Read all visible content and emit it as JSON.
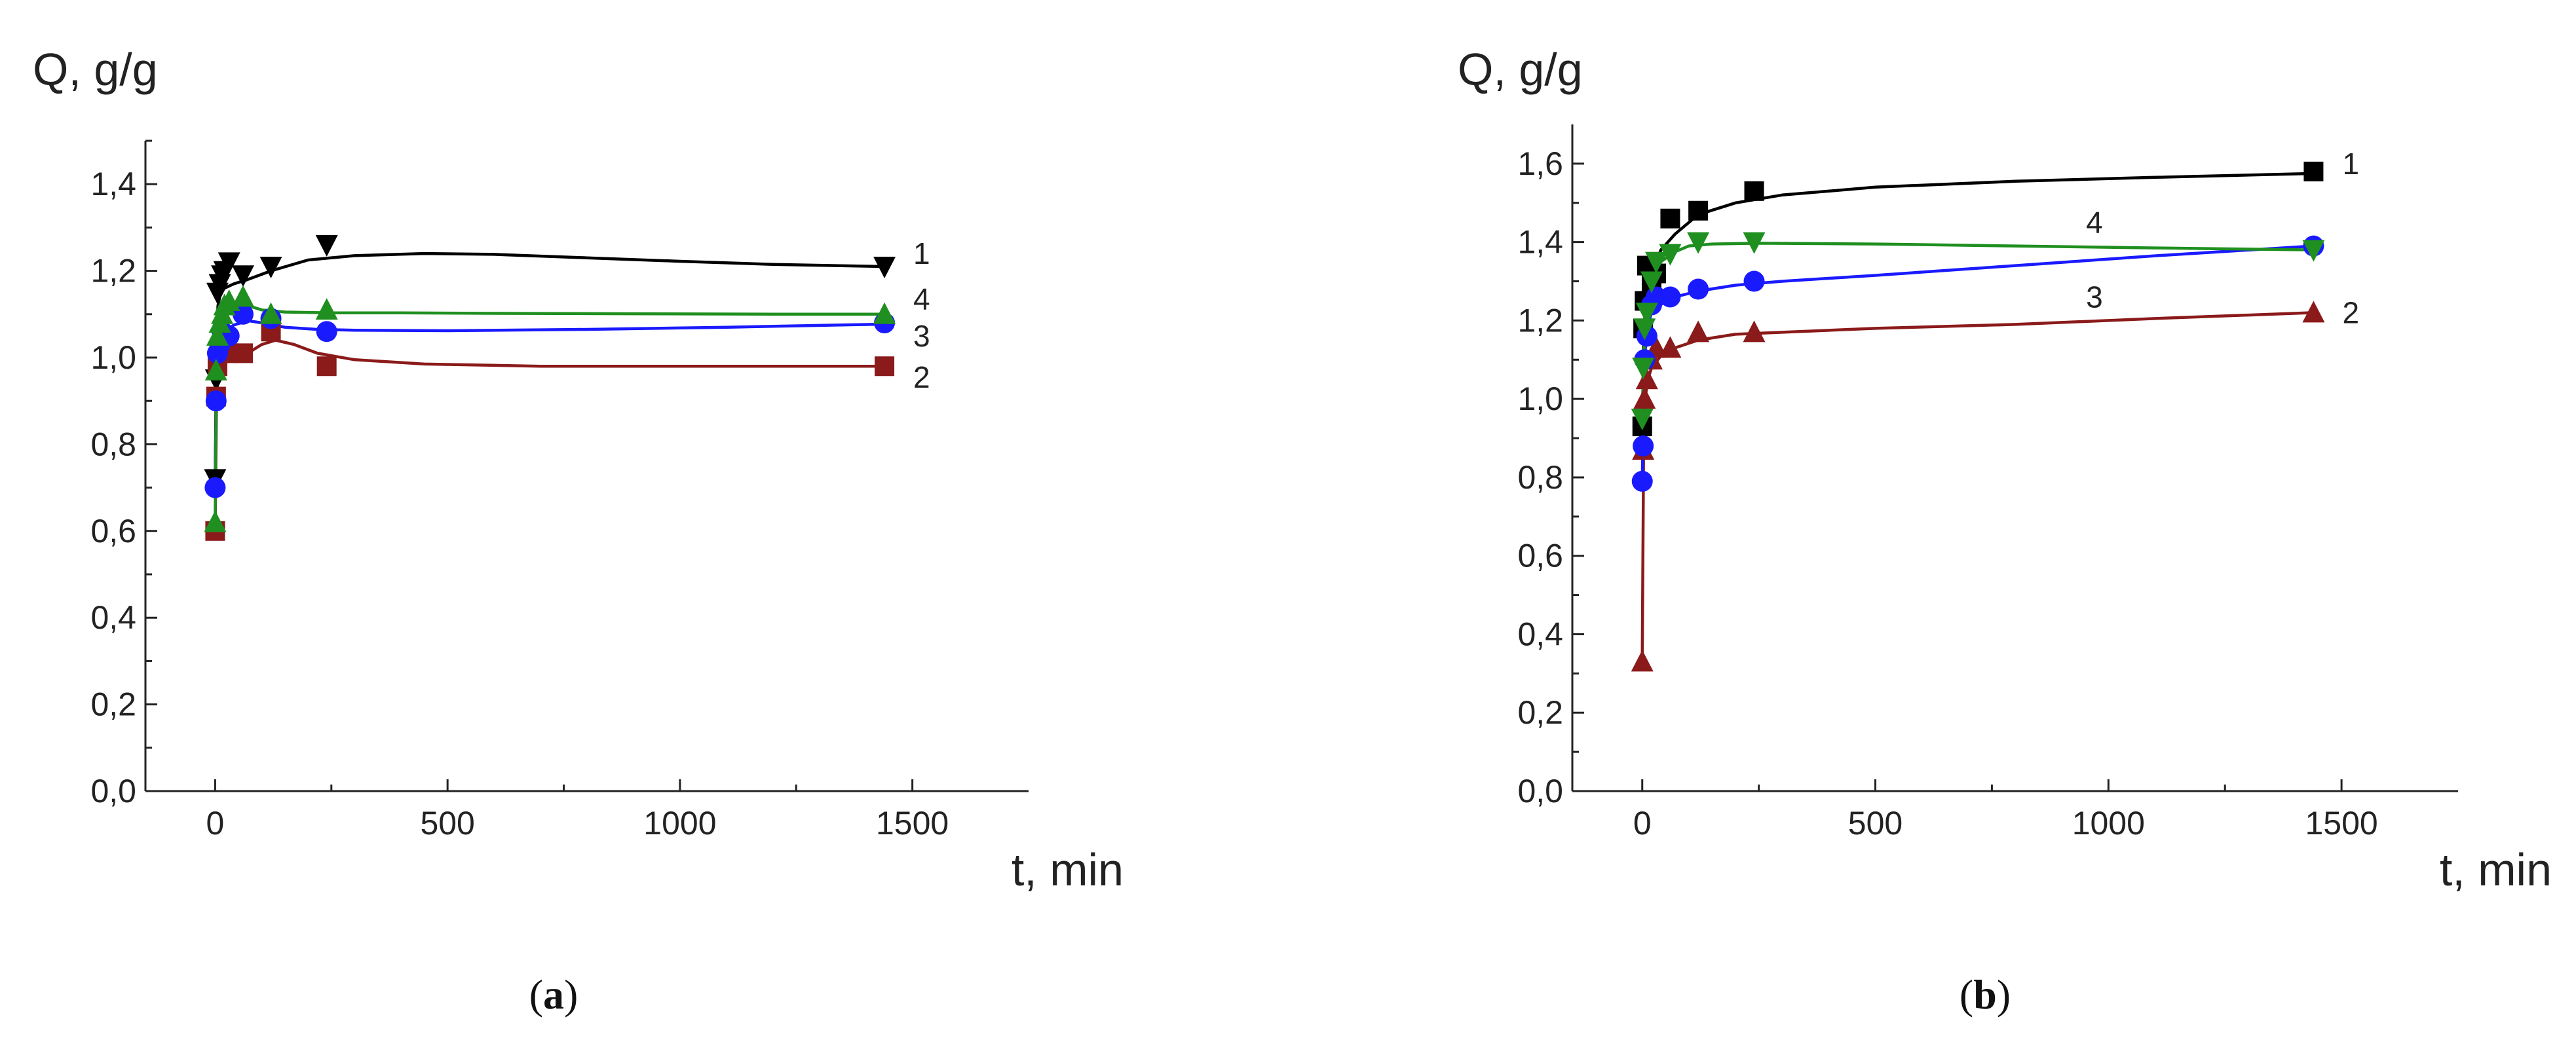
{
  "figure": {
    "panel_labels": [
      "a",
      "b"
    ]
  },
  "chart_data": [
    {
      "type": "scatter",
      "panel": "a",
      "ylabel": "Q, g/g",
      "xlabel": "t, min",
      "xlim": [
        -150,
        1750
      ],
      "ylim": [
        0,
        1.5
      ],
      "x_ticks": [
        0,
        500,
        1000,
        1500
      ],
      "x_tick_labels": [
        "0",
        "500",
        "1000",
        "1500"
      ],
      "y_ticks": [
        0,
        0.2,
        0.4,
        0.6,
        0.8,
        1.0,
        1.2,
        1.4
      ],
      "y_tick_labels": [
        "0,0",
        "0,2",
        "0,4",
        "0,6",
        "0,8",
        "1,0",
        "1,2",
        "1,4"
      ],
      "series": [
        {
          "name": "1",
          "label": "1",
          "color": "#000000",
          "marker": "triangle-down",
          "x": [
            0,
            2,
            5,
            10,
            15,
            20,
            30,
            60,
            120,
            240,
            1440
          ],
          "values": [
            0.72,
            0.95,
            1.15,
            1.17,
            1.19,
            1.2,
            1.22,
            1.19,
            1.21,
            1.26,
            1.21
          ],
          "curve_x": [
            0,
            3,
            6,
            12,
            20,
            40,
            70,
            120,
            200,
            300,
            450,
            600,
            800,
            1000,
            1200,
            1440
          ],
          "curve_y": [
            0.7,
            1.05,
            1.12,
            1.15,
            1.16,
            1.17,
            1.18,
            1.2,
            1.225,
            1.235,
            1.24,
            1.238,
            1.23,
            1.222,
            1.215,
            1.21
          ]
        },
        {
          "name": "2",
          "label": "2",
          "color": "#8B1A1A",
          "marker": "square",
          "x": [
            0,
            2,
            5,
            10,
            20,
            30,
            60,
            120,
            240,
            1440
          ],
          "values": [
            0.6,
            0.91,
            0.98,
            1.01,
            1.02,
            1.01,
            1.01,
            1.06,
            0.98,
            0.98
          ],
          "curve_x": [
            0,
            3,
            6,
            12,
            20,
            40,
            70,
            100,
            130,
            170,
            220,
            300,
            450,
            700,
            1000,
            1440
          ],
          "curve_y": [
            0.6,
            0.9,
            0.96,
            0.99,
            1.0,
            1.005,
            1.01,
            1.03,
            1.04,
            1.03,
            1.01,
            0.995,
            0.985,
            0.98,
            0.98,
            0.98
          ]
        },
        {
          "name": "3",
          "label": "3",
          "color": "#1a1aff",
          "marker": "circle",
          "x": [
            0,
            2,
            5,
            10,
            15,
            20,
            30,
            60,
            120,
            240,
            1440
          ],
          "values": [
            0.7,
            0.9,
            1.01,
            1.03,
            1.06,
            1.05,
            1.05,
            1.1,
            1.09,
            1.06,
            1.08
          ],
          "curve_x": [
            0,
            3,
            6,
            12,
            20,
            40,
            70,
            100,
            150,
            220,
            300,
            500,
            800,
            1100,
            1440
          ],
          "curve_y": [
            0.7,
            0.98,
            1.03,
            1.05,
            1.06,
            1.075,
            1.085,
            1.08,
            1.07,
            1.065,
            1.063,
            1.062,
            1.065,
            1.07,
            1.077
          ]
        },
        {
          "name": "4",
          "label": "4",
          "color": "#1f8f1f",
          "marker": "triangle-up",
          "x": [
            0,
            2,
            5,
            10,
            15,
            20,
            30,
            60,
            120,
            240,
            1440
          ],
          "values": [
            0.62,
            0.97,
            1.05,
            1.08,
            1.1,
            1.12,
            1.13,
            1.14,
            1.1,
            1.11,
            1.1
          ],
          "curve_x": [
            0,
            3,
            6,
            12,
            20,
            40,
            70,
            100,
            150,
            250,
            400,
            600,
            900,
            1200,
            1440
          ],
          "curve_y": [
            0.62,
            1.0,
            1.06,
            1.1,
            1.12,
            1.125,
            1.12,
            1.11,
            1.105,
            1.103,
            1.103,
            1.102,
            1.101,
            1.1,
            1.1
          ]
        }
      ]
    },
    {
      "type": "scatter",
      "panel": "b",
      "ylabel": "Q, g/g",
      "xlabel": "t, min",
      "xlim": [
        -150,
        1750
      ],
      "ylim": [
        0,
        1.7
      ],
      "x_ticks": [
        0,
        500,
        1000,
        1500
      ],
      "x_tick_labels": [
        "0",
        "500",
        "1000",
        "1500"
      ],
      "y_ticks": [
        0,
        0.2,
        0.4,
        0.6,
        0.8,
        1.0,
        1.2,
        1.4,
        1.6
      ],
      "y_tick_labels": [
        "0,0",
        "0,2",
        "0,4",
        "0,6",
        "0,8",
        "1,0",
        "1,2",
        "1,4",
        "1,6"
      ],
      "series": [
        {
          "name": "1",
          "label": "1",
          "color": "#000000",
          "marker": "square",
          "x": [
            0,
            2,
            5,
            10,
            20,
            30,
            60,
            120,
            240,
            1440
          ],
          "values": [
            0.93,
            1.18,
            1.25,
            1.34,
            1.3,
            1.32,
            1.46,
            1.48,
            1.53,
            1.58
          ],
          "curve_x": [
            0,
            3,
            6,
            12,
            20,
            40,
            70,
            120,
            200,
            300,
            500,
            800,
            1100,
            1440
          ],
          "curve_y": [
            0.92,
            1.15,
            1.22,
            1.28,
            1.32,
            1.38,
            1.42,
            1.47,
            1.5,
            1.52,
            1.54,
            1.555,
            1.565,
            1.575
          ]
        },
        {
          "name": "2",
          "label": "2",
          "color": "#8B1A1A",
          "marker": "triangle-up",
          "x": [
            0,
            2,
            5,
            10,
            20,
            30,
            60,
            120,
            240,
            1440
          ],
          "values": [
            0.33,
            0.87,
            1.0,
            1.05,
            1.1,
            1.13,
            1.13,
            1.17,
            1.17,
            1.22
          ],
          "curve_x": [
            0,
            3,
            6,
            12,
            20,
            40,
            70,
            120,
            200,
            300,
            500,
            800,
            1100,
            1440
          ],
          "curve_y": [
            0.33,
            0.9,
            1.0,
            1.05,
            1.08,
            1.11,
            1.13,
            1.15,
            1.165,
            1.17,
            1.18,
            1.19,
            1.205,
            1.22
          ]
        },
        {
          "name": "3",
          "label": "3",
          "color": "#1a1aff",
          "marker": "circle",
          "x": [
            0,
            2,
            5,
            10,
            20,
            30,
            60,
            120,
            240,
            1440
          ],
          "values": [
            0.79,
            0.88,
            1.1,
            1.16,
            1.24,
            1.26,
            1.26,
            1.28,
            1.3,
            1.39
          ],
          "curve_x": [
            0,
            3,
            6,
            12,
            20,
            40,
            70,
            120,
            200,
            300,
            500,
            800,
            1100,
            1440
          ],
          "curve_y": [
            0.79,
            1.0,
            1.12,
            1.19,
            1.22,
            1.245,
            1.26,
            1.275,
            1.29,
            1.3,
            1.315,
            1.34,
            1.365,
            1.39
          ]
        },
        {
          "name": "4",
          "label": "4",
          "color": "#1f8f1f",
          "marker": "triangle-down",
          "x": [
            0,
            2,
            5,
            10,
            20,
            30,
            60,
            120,
            240,
            1440
          ],
          "values": [
            0.95,
            1.08,
            1.18,
            1.22,
            1.3,
            1.35,
            1.37,
            1.4,
            1.4,
            1.38
          ],
          "curve_x": [
            0,
            3,
            6,
            12,
            20,
            40,
            70,
            100,
            150,
            250,
            500,
            800,
            1100,
            1440
          ],
          "curve_y": [
            0.95,
            1.1,
            1.18,
            1.25,
            1.3,
            1.35,
            1.375,
            1.39,
            1.395,
            1.397,
            1.395,
            1.39,
            1.385,
            1.38
          ]
        }
      ]
    }
  ]
}
